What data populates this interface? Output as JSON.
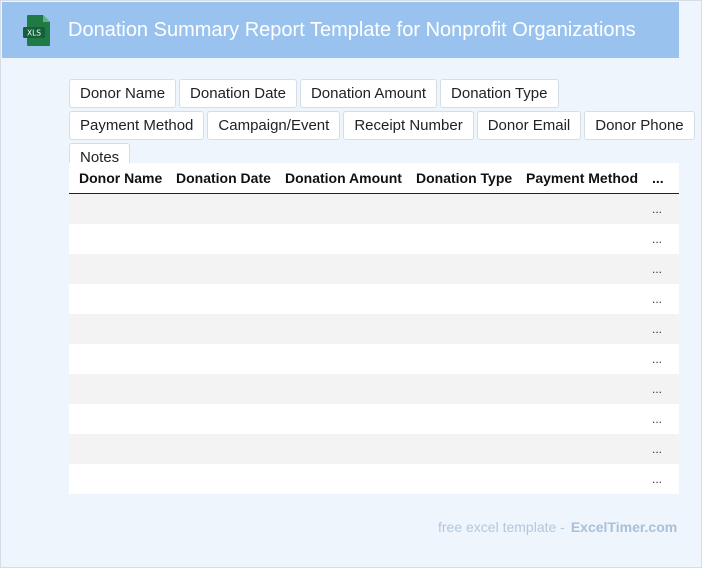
{
  "header": {
    "title": "Donation Summary Report Template for Nonprofit Organizations",
    "icon_label": "XLS"
  },
  "fields": [
    "Donor Name",
    "Donation Date",
    "Donation Amount",
    "Donation Type",
    "Payment Method",
    "Campaign/Event",
    "Receipt Number",
    "Donor Email",
    "Donor Phone",
    "Notes"
  ],
  "table": {
    "columns": [
      "Donor Name",
      "Donation Date",
      "Donation Amount",
      "Donation Type",
      "Payment Method",
      "..."
    ],
    "row_ellipsis": [
      "...",
      "...",
      "...",
      "...",
      "...",
      "...",
      "...",
      "...",
      "...",
      "..."
    ]
  },
  "footer": {
    "label": "free excel template -",
    "brand": "ExcelTimer.com"
  },
  "colors": {
    "header_bg": "#99c3ee",
    "page_bg": "#eef5fd",
    "icon_green": "#1f7a45"
  }
}
